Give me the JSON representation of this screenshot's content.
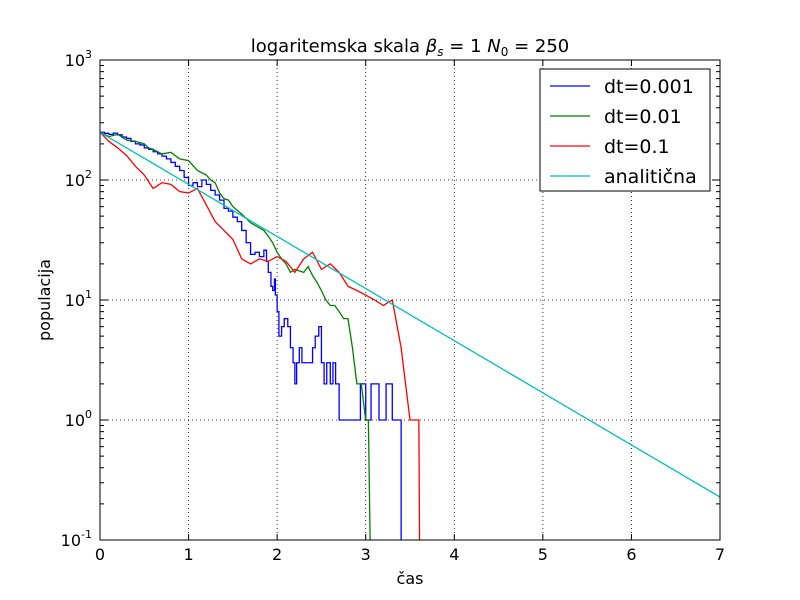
{
  "chart_data": {
    "type": "line",
    "title": {
      "prefix": "logaritemska skala ",
      "beta_symbol": "β",
      "beta_sub": "s",
      "beta_eq": " = 1   ",
      "n_symbol": "N",
      "n_sub": "0",
      "n_eq": " = 250"
    },
    "xlabel": "čas",
    "ylabel": "populacija",
    "xlim": [
      0,
      7
    ],
    "ylim": [
      0.1,
      1000
    ],
    "yscale": "log",
    "grid": true,
    "legend_position": "top-right",
    "x_ticks": [
      {
        "value": 0,
        "label": "0"
      },
      {
        "value": 1,
        "label": "1"
      },
      {
        "value": 2,
        "label": "2"
      },
      {
        "value": 3,
        "label": "3"
      },
      {
        "value": 4,
        "label": "4"
      },
      {
        "value": 5,
        "label": "5"
      },
      {
        "value": 6,
        "label": "6"
      },
      {
        "value": 7,
        "label": "7"
      }
    ],
    "y_ticks": [
      {
        "value": 0.1,
        "base": "10",
        "exp": "-1"
      },
      {
        "value": 1,
        "base": "10",
        "exp": "0"
      },
      {
        "value": 10,
        "base": "10",
        "exp": "1"
      },
      {
        "value": 100,
        "base": "10",
        "exp": "2"
      },
      {
        "value": 1000,
        "base": "10",
        "exp": "3"
      }
    ],
    "series": [
      {
        "name": "dt=0.001",
        "color": "#0000ff",
        "step": true,
        "points": [
          [
            0,
            250
          ],
          [
            0.05,
            245
          ],
          [
            0.1,
            240
          ],
          [
            0.15,
            246
          ],
          [
            0.2,
            238
          ],
          [
            0.25,
            228
          ],
          [
            0.3,
            222
          ],
          [
            0.35,
            210
          ],
          [
            0.4,
            200
          ],
          [
            0.45,
            196
          ],
          [
            0.5,
            185
          ],
          [
            0.55,
            180
          ],
          [
            0.6,
            172
          ],
          [
            0.65,
            165
          ],
          [
            0.7,
            158
          ],
          [
            0.75,
            150
          ],
          [
            0.8,
            140
          ],
          [
            0.85,
            130
          ],
          [
            0.9,
            120
          ],
          [
            0.95,
            105
          ],
          [
            1.0,
            90
          ],
          [
            1.05,
            95
          ],
          [
            1.1,
            88
          ],
          [
            1.15,
            100
          ],
          [
            1.2,
            92
          ],
          [
            1.25,
            82
          ],
          [
            1.3,
            75
          ],
          [
            1.35,
            68
          ],
          [
            1.4,
            58
          ],
          [
            1.45,
            55
          ],
          [
            1.5,
            49
          ],
          [
            1.55,
            45
          ],
          [
            1.6,
            38
          ],
          [
            1.65,
            30
          ],
          [
            1.7,
            24
          ],
          [
            1.75,
            25
          ],
          [
            1.8,
            23
          ],
          [
            1.85,
            26
          ],
          [
            1.88,
            21
          ],
          [
            1.9,
            17
          ],
          [
            1.93,
            13
          ],
          [
            1.95,
            12
          ],
          [
            1.97,
            15
          ],
          [
            1.98,
            11
          ],
          [
            2.0,
            8
          ],
          [
            2.02,
            5
          ],
          [
            2.05,
            6
          ],
          [
            2.08,
            7
          ],
          [
            2.1,
            7
          ],
          [
            2.12,
            6
          ],
          [
            2.15,
            4
          ],
          [
            2.18,
            3
          ],
          [
            2.2,
            2
          ],
          [
            2.22,
            3
          ],
          [
            2.25,
            4
          ],
          [
            2.28,
            3
          ],
          [
            2.32,
            3
          ],
          [
            2.35,
            3
          ],
          [
            2.38,
            3
          ],
          [
            2.4,
            4
          ],
          [
            2.43,
            5
          ],
          [
            2.47,
            6
          ],
          [
            2.5,
            3
          ],
          [
            2.53,
            2
          ],
          [
            2.56,
            3
          ],
          [
            2.6,
            2
          ],
          [
            2.63,
            3
          ],
          [
            2.66,
            2
          ],
          [
            2.7,
            1
          ],
          [
            2.73,
            1
          ],
          [
            2.8,
            1
          ],
          [
            2.85,
            1
          ],
          [
            2.9,
            1
          ],
          [
            2.94,
            2
          ],
          [
            2.98,
            2
          ],
          [
            3.0,
            1
          ],
          [
            3.02,
            1
          ],
          [
            3.06,
            2
          ],
          [
            3.1,
            2
          ],
          [
            3.15,
            1
          ],
          [
            3.2,
            1
          ],
          [
            3.23,
            2
          ],
          [
            3.25,
            2
          ],
          [
            3.3,
            1
          ],
          [
            3.35,
            1
          ],
          [
            3.38,
            1
          ],
          [
            3.4,
            0.05
          ]
        ]
      },
      {
        "name": "dt=0.01",
        "color": "#008000",
        "step": false,
        "points": [
          [
            0,
            250
          ],
          [
            0.1,
            230
          ],
          [
            0.2,
            240
          ],
          [
            0.3,
            215
          ],
          [
            0.4,
            210
          ],
          [
            0.5,
            200
          ],
          [
            0.55,
            185
          ],
          [
            0.6,
            180
          ],
          [
            0.7,
            165
          ],
          [
            0.8,
            170
          ],
          [
            0.9,
            150
          ],
          [
            1.0,
            145
          ],
          [
            1.1,
            120
          ],
          [
            1.2,
            110
          ],
          [
            1.25,
            100
          ],
          [
            1.3,
            95
          ],
          [
            1.35,
            78
          ],
          [
            1.4,
            70
          ],
          [
            1.45,
            68
          ],
          [
            1.5,
            60
          ],
          [
            1.6,
            52
          ],
          [
            1.65,
            48
          ],
          [
            1.7,
            44
          ],
          [
            1.8,
            40
          ],
          [
            1.85,
            38
          ],
          [
            1.9,
            34
          ],
          [
            1.95,
            30
          ],
          [
            2.0,
            25
          ],
          [
            2.05,
            22
          ],
          [
            2.1,
            20
          ],
          [
            2.15,
            17
          ],
          [
            2.2,
            18
          ],
          [
            2.3,
            17
          ],
          [
            2.35,
            19
          ],
          [
            2.4,
            16
          ],
          [
            2.45,
            14
          ],
          [
            2.5,
            12
          ],
          [
            2.55,
            10
          ],
          [
            2.6,
            9
          ],
          [
            2.65,
            9
          ],
          [
            2.7,
            8
          ],
          [
            2.75,
            7
          ],
          [
            2.8,
            7
          ],
          [
            2.85,
            4
          ],
          [
            2.9,
            2
          ],
          [
            2.95,
            2
          ],
          [
            3.0,
            1
          ],
          [
            3.03,
            1
          ],
          [
            3.05,
            0.1
          ],
          [
            3.06,
            0.05
          ]
        ]
      },
      {
        "name": "dt=0.1",
        "color": "#ff0000",
        "step": false,
        "points": [
          [
            0,
            250
          ],
          [
            0.1,
            210
          ],
          [
            0.2,
            185
          ],
          [
            0.3,
            160
          ],
          [
            0.4,
            130
          ],
          [
            0.5,
            110
          ],
          [
            0.6,
            85
          ],
          [
            0.7,
            95
          ],
          [
            0.8,
            92
          ],
          [
            0.9,
            80
          ],
          [
            1.0,
            78
          ],
          [
            1.1,
            85
          ],
          [
            1.2,
            62
          ],
          [
            1.3,
            45
          ],
          [
            1.4,
            38
          ],
          [
            1.5,
            32
          ],
          [
            1.6,
            22
          ],
          [
            1.7,
            20
          ],
          [
            1.8,
            22
          ],
          [
            1.9,
            21
          ],
          [
            2.0,
            23
          ],
          [
            2.1,
            21
          ],
          [
            2.2,
            17
          ],
          [
            2.3,
            22
          ],
          [
            2.4,
            25
          ],
          [
            2.5,
            18
          ],
          [
            2.6,
            20
          ],
          [
            2.7,
            17
          ],
          [
            2.8,
            13
          ],
          [
            2.9,
            12
          ],
          [
            3.0,
            11
          ],
          [
            3.1,
            10
          ],
          [
            3.2,
            9
          ],
          [
            3.3,
            10
          ],
          [
            3.4,
            4
          ],
          [
            3.5,
            1
          ],
          [
            3.6,
            1
          ],
          [
            3.61,
            0.05
          ]
        ]
      },
      {
        "name": "analitična",
        "color": "#00bfbf",
        "step": false,
        "points": [
          [
            0,
            250
          ],
          [
            7,
            0.228
          ]
        ]
      }
    ]
  }
}
